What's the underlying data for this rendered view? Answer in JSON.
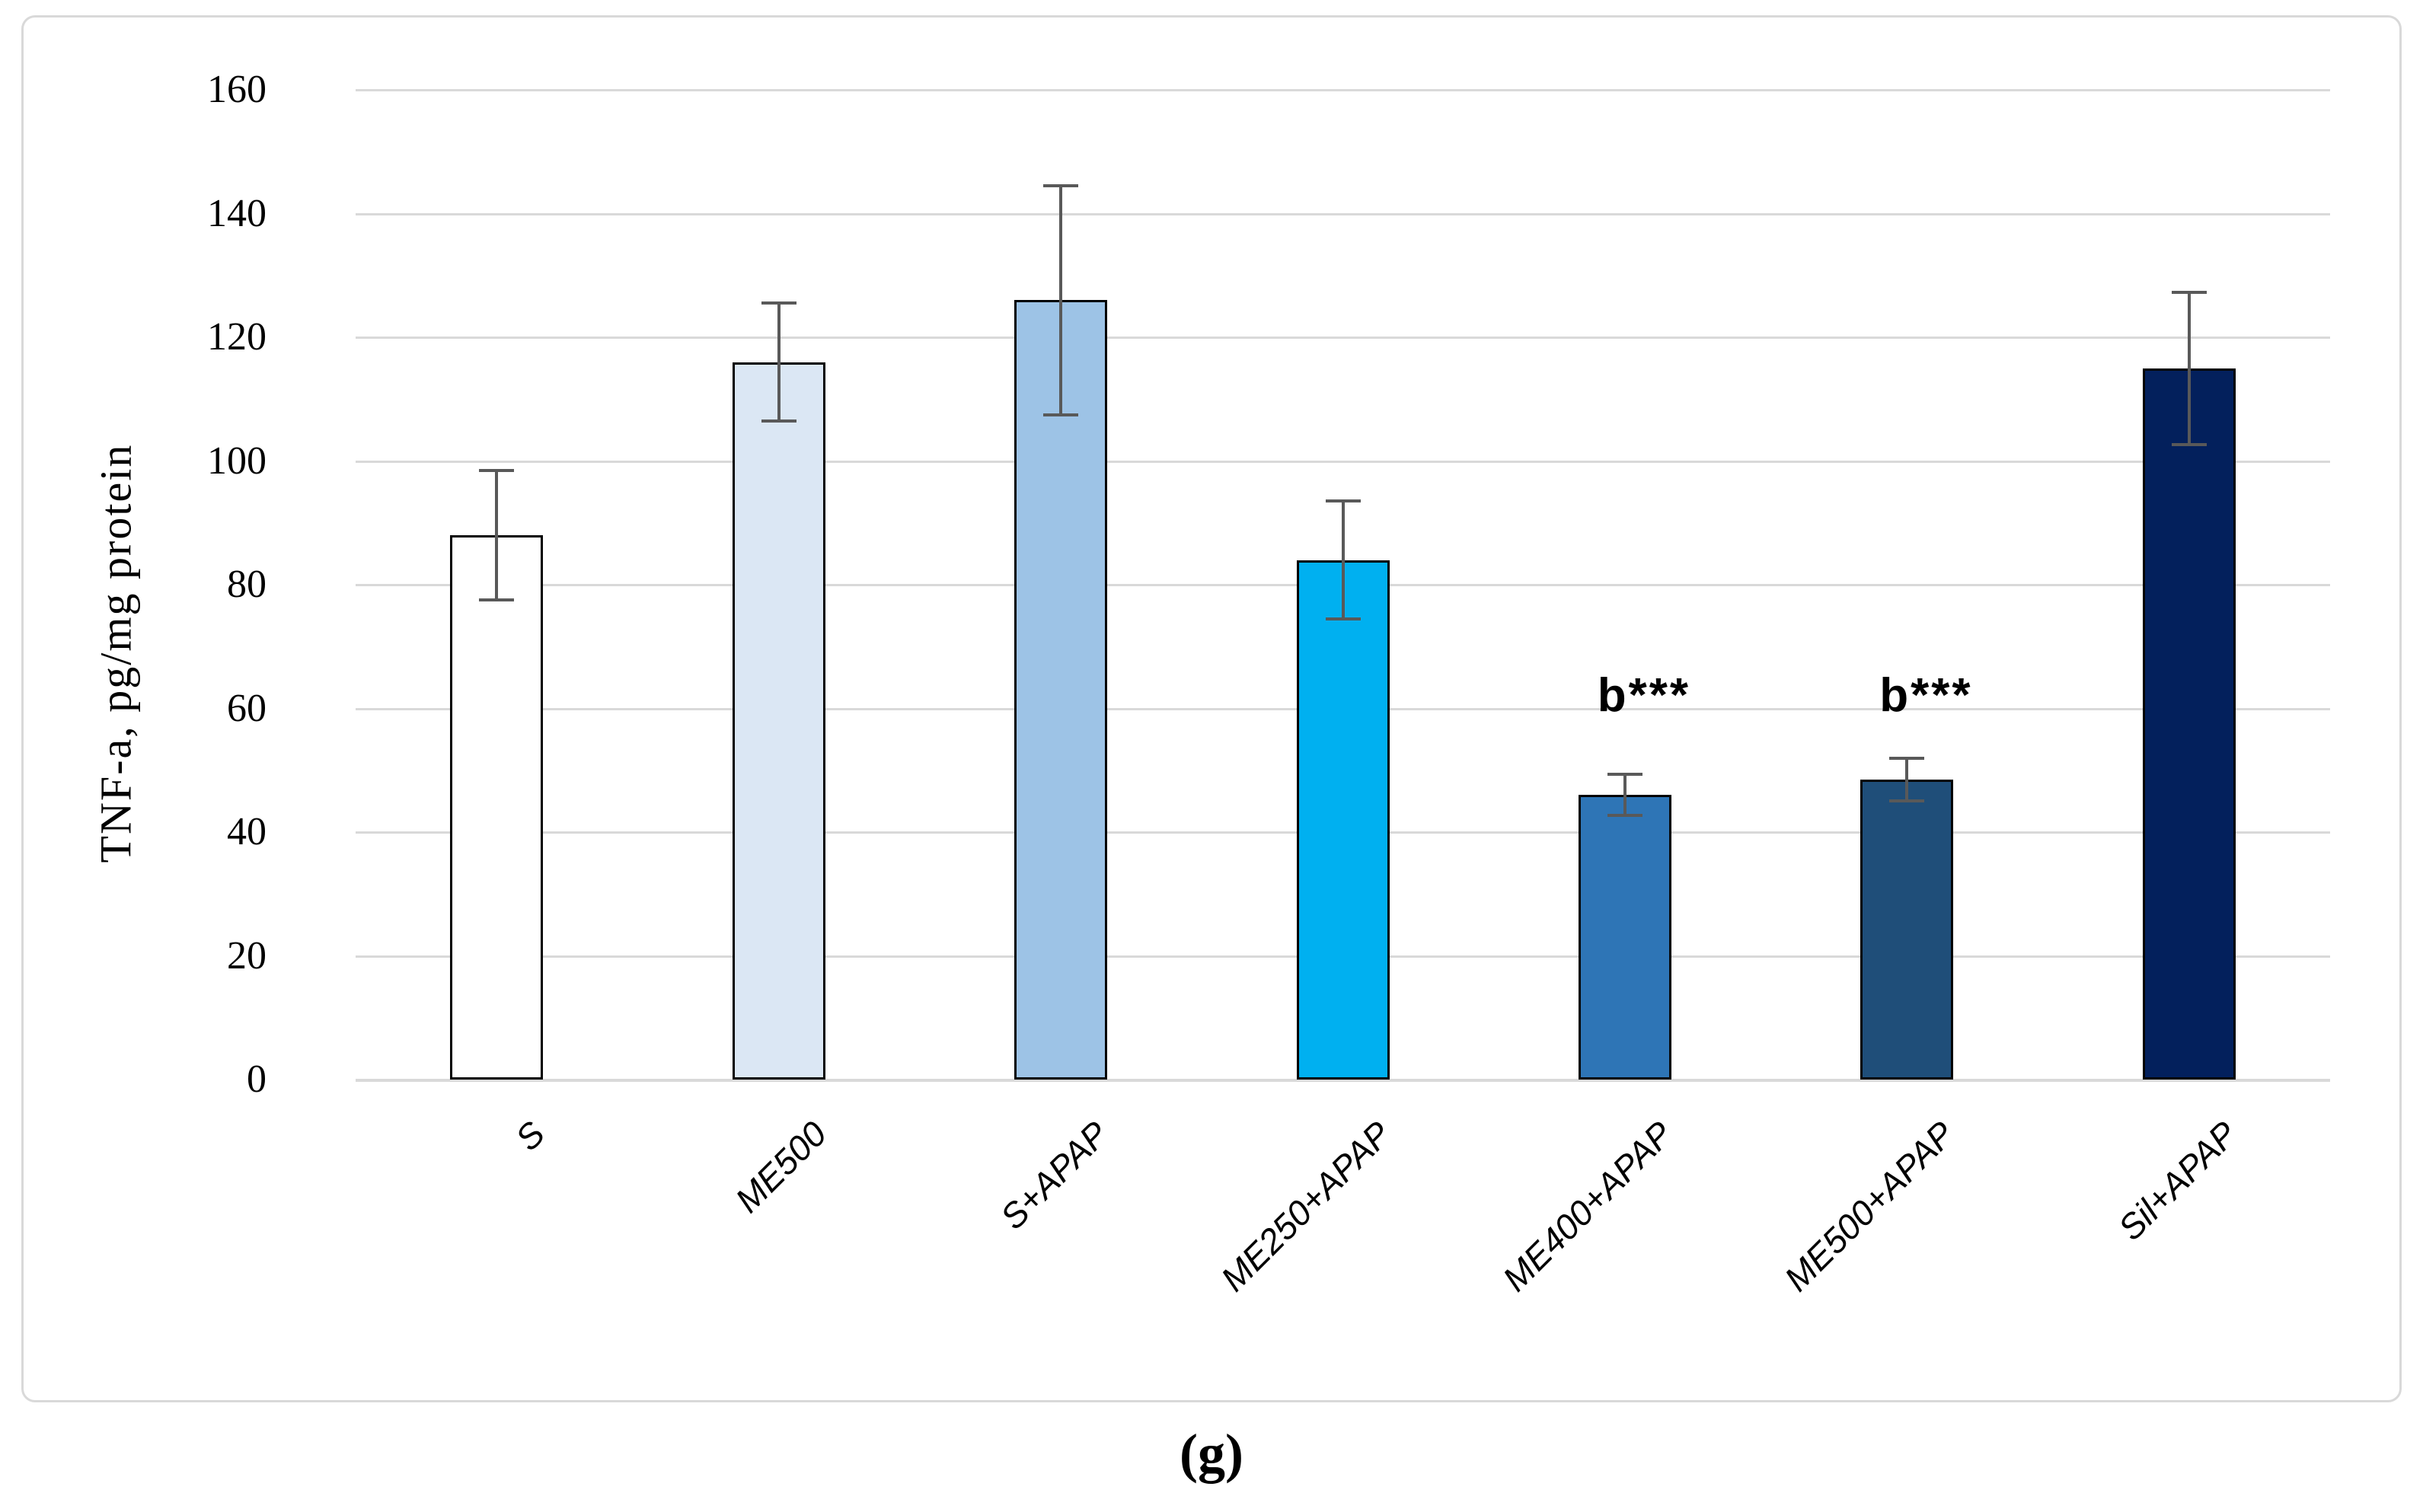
{
  "chart_data": {
    "type": "bar",
    "title": "",
    "xlabel": "",
    "ylabel": "TNF-a, pg/mg protein",
    "ylim": [
      0,
      160
    ],
    "ytick_step": 20,
    "yticks": [
      0,
      20,
      40,
      60,
      80,
      100,
      120,
      140,
      160
    ],
    "grid": "horizontal",
    "legend": "none",
    "categories": [
      "S",
      "ME500",
      "S+APAP",
      "ME250+APAP",
      "ME400+APAP",
      "ME500+APAP",
      "Sil+APAP"
    ],
    "values": [
      88,
      116,
      126,
      84,
      46,
      48.5,
      115
    ],
    "error_bars": [
      10.5,
      9.5,
      18.5,
      9.5,
      3.3,
      3.5,
      12.3
    ],
    "bar_colors": [
      "#ffffff",
      "#dbe7f4",
      "#9dc3e6",
      "#00b0f0",
      "#2e75b6",
      "#1f4e79",
      "#03205c"
    ],
    "bar_border_color": "#000000",
    "error_bar_color": "#595959",
    "gridline_color": "#d9d9d9",
    "frame_border_color": "#d9d9d9",
    "annotations": [
      {
        "text": "b***",
        "category_index": 4,
        "y_value": 62
      },
      {
        "text": "b***",
        "category_index": 5,
        "y_value": 62
      }
    ]
  },
  "caption": "(g)"
}
